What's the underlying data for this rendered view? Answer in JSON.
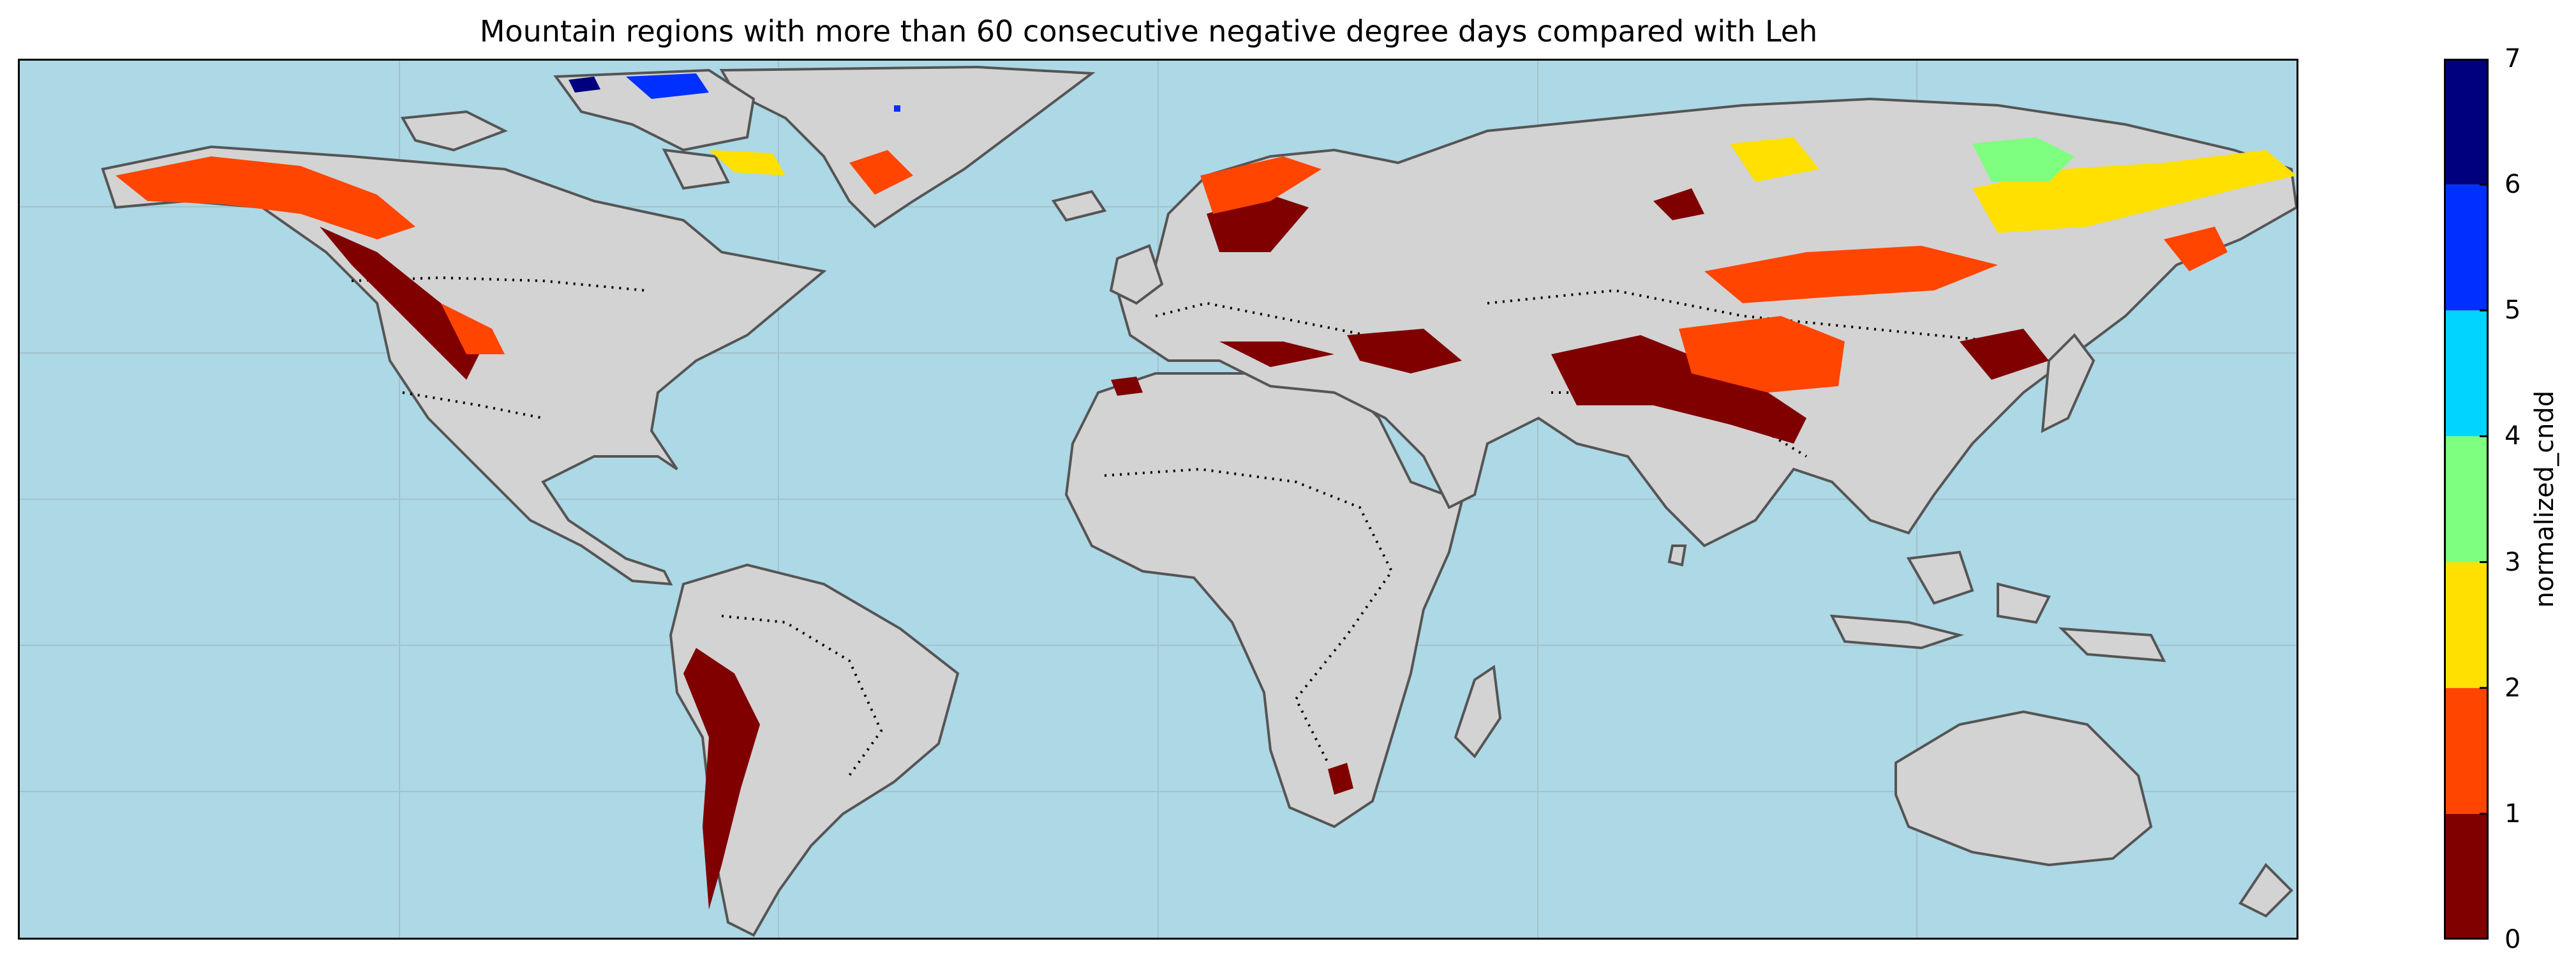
{
  "title": "Mountain regions with more than 60 consecutive negative degree days compared with Leh",
  "colorbar": {
    "label": "normalized_cndd",
    "ticks": [
      "0",
      "1",
      "2",
      "3",
      "4",
      "5",
      "6",
      "7"
    ],
    "colors": [
      "#800000",
      "#ff4500",
      "#ffe000",
      "#7fff7f",
      "#00d4ff",
      "#0030ff",
      "#00007f"
    ]
  },
  "map": {
    "ocean_color": "#add8e6",
    "land_color": "#d3d3d3",
    "coast_color": "#555555",
    "border_style": "dotted",
    "gridlines": true,
    "projection": "plate-carree"
  }
}
